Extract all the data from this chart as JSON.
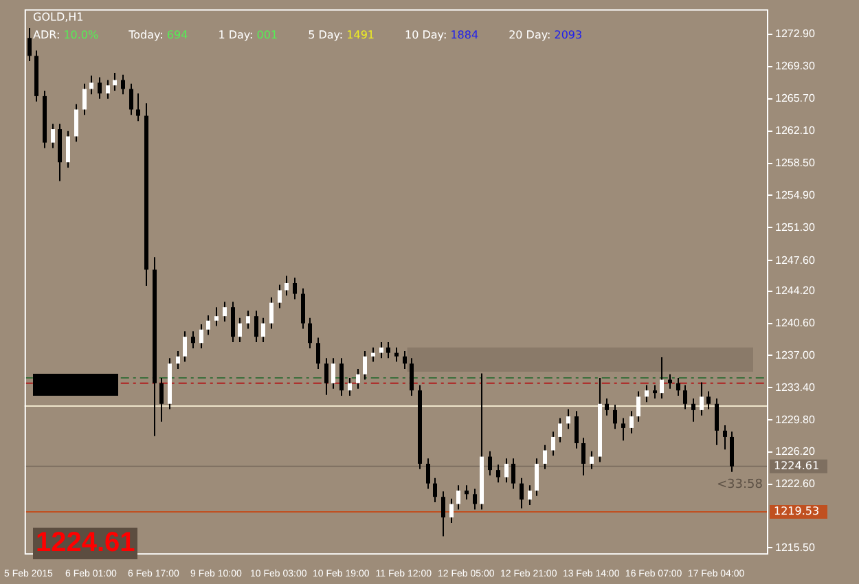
{
  "chart_data": {
    "type": "candlestick",
    "title": "GOLD,H1",
    "annotations": [
      "ADR:",
      "10.0%",
      "Today:",
      "694",
      "1 Day:",
      "001",
      "5 Day:",
      "1491",
      "10 Day:",
      "1884",
      "20 Day:",
      "2093",
      "1224.61",
      "<33:58"
    ],
    "categories": [
      "5 Feb 2015",
      null,
      null,
      null,
      null,
      null,
      null,
      null,
      "6 Feb 01:00",
      null,
      null,
      null,
      null,
      null,
      null,
      null,
      "6 Feb 17:00",
      null,
      null,
      null,
      null,
      null,
      null,
      null,
      "9 Feb 10:00",
      null,
      null,
      null,
      null,
      null,
      null,
      null,
      "10 Feb 03:00",
      null,
      null,
      null,
      null,
      null,
      null,
      null,
      "10 Feb 19:00",
      null,
      null,
      null,
      null,
      null,
      null,
      null,
      "11 Feb 12:00",
      null,
      null,
      null,
      null,
      null,
      null,
      null,
      "12 Feb 05:00",
      null,
      null,
      null,
      null,
      null,
      null,
      null,
      "12 Feb 21:00",
      null,
      null,
      null,
      null,
      null,
      null,
      null,
      "13 Feb 14:00",
      null,
      null,
      null,
      null,
      null,
      null,
      null,
      "16 Feb 07:00",
      null,
      null,
      null,
      null,
      null,
      null,
      null,
      "17 Feb 04:00",
      null,
      null,
      null,
      null,
      null,
      null
    ],
    "ohlc": [
      [
        1272.5,
        1273.6,
        1269.9,
        1270.5
      ],
      [
        1270.5,
        1271.1,
        1265.4,
        1266.0
      ],
      [
        1266.0,
        1266.6,
        1260.2,
        1260.8
      ],
      [
        1260.8,
        1262.9,
        1260.2,
        1262.3
      ],
      [
        1262.3,
        1262.9,
        1256.5,
        1258.6
      ],
      [
        1258.6,
        1262.1,
        1258.0,
        1261.5
      ],
      [
        1261.5,
        1265.1,
        1260.9,
        1264.5
      ],
      [
        1264.5,
        1267.4,
        1263.9,
        1266.8
      ],
      [
        1266.8,
        1268.3,
        1266.2,
        1267.5
      ],
      [
        1267.5,
        1268.1,
        1265.7,
        1266.3
      ],
      [
        1266.3,
        1267.8,
        1265.7,
        1267.2
      ],
      [
        1267.2,
        1268.6,
        1266.6,
        1267.8
      ],
      [
        1267.8,
        1268.4,
        1266.2,
        1266.8
      ],
      [
        1266.8,
        1267.4,
        1263.9,
        1264.5
      ],
      [
        1264.5,
        1266.3,
        1263.2,
        1263.8
      ],
      [
        1263.8,
        1265.2,
        1244.8,
        1246.6
      ],
      [
        1246.6,
        1248.0,
        1228.0,
        1233.9
      ],
      [
        1233.9,
        1234.5,
        1229.6,
        1231.6
      ],
      [
        1231.6,
        1236.7,
        1231.0,
        1236.1
      ],
      [
        1236.1,
        1237.5,
        1235.5,
        1236.9
      ],
      [
        1236.9,
        1239.7,
        1236.3,
        1239.1
      ],
      [
        1239.1,
        1239.7,
        1237.8,
        1238.4
      ],
      [
        1238.4,
        1240.5,
        1237.8,
        1239.9
      ],
      [
        1239.9,
        1241.5,
        1239.3,
        1240.9
      ],
      [
        1240.9,
        1242.4,
        1240.3,
        1241.4
      ],
      [
        1241.4,
        1243.0,
        1240.8,
        1242.4
      ],
      [
        1242.4,
        1243.0,
        1238.5,
        1239.1
      ],
      [
        1239.1,
        1241.2,
        1238.5,
        1240.6
      ],
      [
        1240.6,
        1242.0,
        1240.0,
        1241.4
      ],
      [
        1241.4,
        1242.0,
        1238.5,
        1239.1
      ],
      [
        1239.1,
        1241.2,
        1238.5,
        1240.6
      ],
      [
        1240.6,
        1243.5,
        1240.0,
        1242.9
      ],
      [
        1242.9,
        1244.9,
        1242.3,
        1244.3
      ],
      [
        1244.3,
        1245.9,
        1243.7,
        1245.1
      ],
      [
        1245.1,
        1245.7,
        1243.3,
        1243.9
      ],
      [
        1243.9,
        1244.5,
        1240.0,
        1240.6
      ],
      [
        1240.6,
        1241.2,
        1237.8,
        1238.4
      ],
      [
        1238.4,
        1239.0,
        1235.5,
        1236.1
      ],
      [
        1236.1,
        1236.7,
        1232.6,
        1233.9
      ],
      [
        1233.9,
        1236.7,
        1233.3,
        1236.1
      ],
      [
        1236.1,
        1236.7,
        1232.5,
        1233.1
      ],
      [
        1233.1,
        1234.5,
        1232.5,
        1233.9
      ],
      [
        1233.9,
        1235.5,
        1233.3,
        1234.9
      ],
      [
        1234.9,
        1237.5,
        1234.3,
        1236.9
      ],
      [
        1236.9,
        1237.9,
        1236.3,
        1237.3
      ],
      [
        1237.3,
        1238.5,
        1236.7,
        1237.9
      ],
      [
        1237.9,
        1238.5,
        1236.7,
        1237.3
      ],
      [
        1237.3,
        1237.9,
        1236.3,
        1236.9
      ],
      [
        1236.9,
        1237.5,
        1235.5,
        1236.1
      ],
      [
        1236.1,
        1236.7,
        1232.5,
        1233.1
      ],
      [
        1233.1,
        1233.7,
        1224.3,
        1224.9
      ],
      [
        1224.9,
        1225.5,
        1222.1,
        1222.7
      ],
      [
        1222.7,
        1223.3,
        1220.6,
        1221.2
      ],
      [
        1221.2,
        1221.8,
        1216.8,
        1218.9
      ],
      [
        1218.9,
        1221.0,
        1218.3,
        1220.4
      ],
      [
        1220.4,
        1222.5,
        1219.8,
        1221.9
      ],
      [
        1221.9,
        1222.5,
        1220.9,
        1221.5
      ],
      [
        1221.5,
        1222.1,
        1219.8,
        1220.4
      ],
      [
        1220.4,
        1235.0,
        1219.8,
        1225.7
      ],
      [
        1225.7,
        1226.3,
        1223.6,
        1224.2
      ],
      [
        1224.2,
        1224.8,
        1222.8,
        1223.4
      ],
      [
        1223.4,
        1225.5,
        1222.8,
        1224.9
      ],
      [
        1224.9,
        1225.5,
        1222.1,
        1222.7
      ],
      [
        1222.7,
        1223.3,
        1219.9,
        1220.9
      ],
      [
        1220.9,
        1222.5,
        1220.3,
        1221.9
      ],
      [
        1221.9,
        1225.5,
        1221.3,
        1224.9
      ],
      [
        1224.9,
        1227.0,
        1224.3,
        1226.4
      ],
      [
        1226.4,
        1228.5,
        1225.8,
        1227.9
      ],
      [
        1227.9,
        1230.0,
        1227.3,
        1229.4
      ],
      [
        1229.4,
        1231.0,
        1228.8,
        1230.2
      ],
      [
        1230.2,
        1230.8,
        1226.6,
        1227.2
      ],
      [
        1227.2,
        1227.8,
        1223.6,
        1224.9
      ],
      [
        1224.9,
        1226.3,
        1224.3,
        1225.7
      ],
      [
        1225.7,
        1234.5,
        1225.1,
        1231.6
      ],
      [
        1231.6,
        1232.2,
        1230.3,
        1230.9
      ],
      [
        1230.9,
        1231.5,
        1228.8,
        1229.4
      ],
      [
        1229.4,
        1230.0,
        1227.5,
        1228.9
      ],
      [
        1228.9,
        1230.8,
        1228.3,
        1230.2
      ],
      [
        1230.2,
        1233.0,
        1229.6,
        1232.4
      ],
      [
        1232.4,
        1233.7,
        1231.8,
        1233.1
      ],
      [
        1233.1,
        1233.7,
        1232.2,
        1232.8
      ],
      [
        1232.8,
        1236.8,
        1232.2,
        1234.3
      ],
      [
        1234.3,
        1234.9,
        1233.3,
        1233.9
      ],
      [
        1233.9,
        1234.5,
        1232.5,
        1233.1
      ],
      [
        1233.1,
        1233.7,
        1231.0,
        1231.6
      ],
      [
        1231.6,
        1232.2,
        1229.6,
        1230.9
      ],
      [
        1230.9,
        1234.0,
        1230.3,
        1232.4
      ],
      [
        1232.4,
        1233.0,
        1231.0,
        1231.6
      ],
      [
        1231.6,
        1232.2,
        1227.0,
        1228.6
      ],
      [
        1228.6,
        1229.2,
        1226.5,
        1227.9
      ],
      [
        1227.9,
        1228.5,
        1224.0,
        1224.61
      ],
      null,
      null,
      null,
      null
    ],
    "ylim": [
      1214.9,
      1275.7
    ],
    "yticks": [
      {
        "value": 1272.9,
        "label": "1272.90"
      },
      {
        "value": 1269.3,
        "label": "1269.30"
      },
      {
        "value": 1265.7,
        "label": "1265.70"
      },
      {
        "value": 1262.1,
        "label": "1262.10"
      },
      {
        "value": 1258.5,
        "label": "1258.50"
      },
      {
        "value": 1254.9,
        "label": "1254.90"
      },
      {
        "value": 1251.3,
        "label": "1251.30"
      },
      {
        "value": 1247.6,
        "label": "1247.60"
      },
      {
        "value": 1244.2,
        "label": "1244.20"
      },
      {
        "value": 1240.6,
        "label": "1240.60"
      },
      {
        "value": 1237.0,
        "label": "1237.00"
      },
      {
        "value": 1233.4,
        "label": "1233.40"
      },
      {
        "value": 1229.8,
        "label": "1229.80"
      },
      {
        "value": 1226.2,
        "label": "1226.20"
      },
      {
        "value": 1222.6,
        "label": "1222.60"
      },
      {
        "value": 1215.5,
        "label": "1215.50"
      }
    ],
    "grid": false,
    "legend": false,
    "ref_lines": [
      {
        "axis": "y",
        "value": 1234.5,
        "color": "#3c6e3c",
        "line_style": "dashed"
      },
      {
        "axis": "y",
        "value": 1233.9,
        "color": "#b02020",
        "line_style": "dashed"
      },
      {
        "axis": "y",
        "value": 1231.35,
        "color": "#efe6cc"
      },
      {
        "axis": "y",
        "value": 1224.61,
        "color": "#7e6f60",
        "label": "1224.61"
      },
      {
        "axis": "y",
        "value": 1219.53,
        "color": "#c05020",
        "label": "1219.53"
      }
    ],
    "bands": [
      {
        "axis": "y",
        "from": 1235.2,
        "to": 1237.9,
        "color": "#8a7a69"
      }
    ]
  }
}
